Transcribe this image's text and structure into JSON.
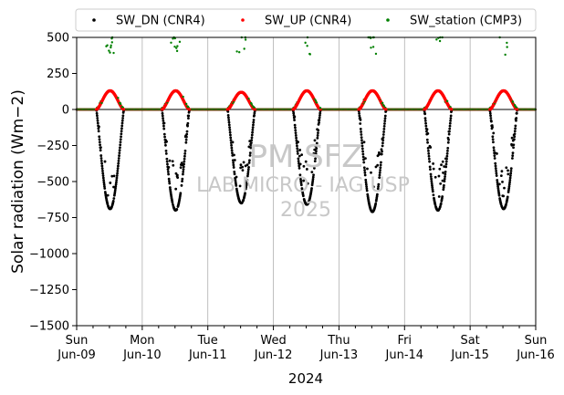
{
  "chart_data": {
    "type": "scatter",
    "title": "",
    "xlabel": "2024",
    "ylabel": "Solar radiation (Wm−2)",
    "ylim": [
      -1500,
      500
    ],
    "yticks": [
      500,
      250,
      0,
      -250,
      -500,
      -750,
      -1000,
      -1250,
      -1500
    ],
    "xlim": [
      "2024-06-09",
      "2024-06-16"
    ],
    "xtick_labels": [
      {
        "date": "2024-06-09",
        "day": "Sun",
        "label": "Jun-09"
      },
      {
        "date": "2024-06-10",
        "day": "Mon",
        "label": "Jun-10"
      },
      {
        "date": "2024-06-11",
        "day": "Tue",
        "label": "Jun-11"
      },
      {
        "date": "2024-06-12",
        "day": "Wed",
        "label": "Jun-12"
      },
      {
        "date": "2024-06-13",
        "day": "Thu",
        "label": "Jun-13"
      },
      {
        "date": "2024-06-14",
        "day": "Fri",
        "label": "Jun-14"
      },
      {
        "date": "2024-06-15",
        "day": "Sat",
        "label": "Jun-15"
      },
      {
        "date": "2024-06-16",
        "day": "Sun",
        "label": "Jun-16"
      }
    ],
    "grid": "vertical",
    "legend_position": "top",
    "watermark": [
      "PM SFZ",
      "LAB MICRO - IAG USP",
      "2025"
    ],
    "daily_peaks": [
      {
        "date": "2024-06-09",
        "sw_dn_min": -690,
        "sw_up_max": 130
      },
      {
        "date": "2024-06-10",
        "sw_dn_min": -700,
        "sw_up_max": 130
      },
      {
        "date": "2024-06-11",
        "sw_dn_min": -650,
        "sw_up_max": 120
      },
      {
        "date": "2024-06-12",
        "sw_dn_min": -660,
        "sw_up_max": 130
      },
      {
        "date": "2024-06-13",
        "sw_dn_min": -710,
        "sw_up_max": 130
      },
      {
        "date": "2024-06-14",
        "sw_dn_min": -700,
        "sw_up_max": 130
      },
      {
        "date": "2024-06-15",
        "sw_dn_min": -690,
        "sw_up_max": 130
      }
    ],
    "series": [
      {
        "name": "SW_DN (CNR4)",
        "color": "#000000"
      },
      {
        "name": "SW_UP (CNR4)",
        "color": "#ff0000"
      },
      {
        "name": "SW_station (CMP3)",
        "color": "#008000"
      }
    ]
  }
}
